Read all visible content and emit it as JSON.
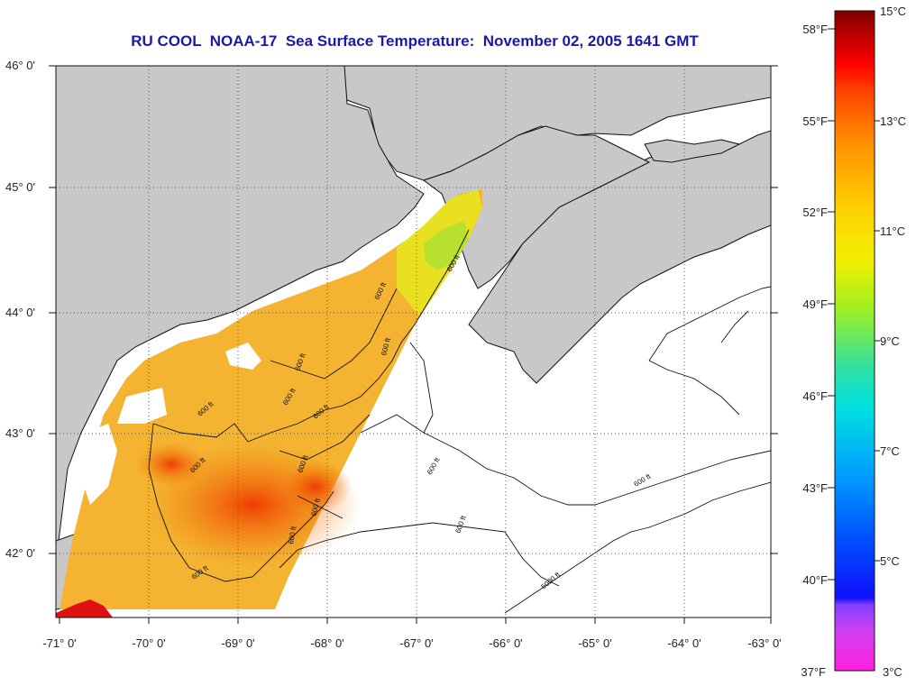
{
  "title": "RU COOL  NOAA-17  Sea Surface Temperature:  November 02, 2005 1641 GMT",
  "map": {
    "lon_ticks": [
      "-71° 0'",
      "-70° 0'",
      "-69° 0'",
      "-68° 0'",
      "-67° 0'",
      "-66° 0'",
      "-65° 0'",
      "-64° 0'",
      "-63° 0'"
    ],
    "lat_ticks": [
      "46° 0'",
      "45° 0'",
      "44° 0'",
      "43° 0'",
      "42° 0'"
    ],
    "contour_labels": [
      "600 ft",
      "600 ft",
      "600 ft",
      "600 ft",
      "600 ft",
      "600 ft",
      "600 ft",
      "600 ft",
      "600 ft",
      "600 ft",
      "600 ft",
      "600 ft",
      "600 ft",
      "600 ft",
      "600 ft",
      "5000 ft"
    ],
    "colors": {
      "land": "#c8c8c8",
      "ocean_nodata": "#ffffff",
      "grid": "#444444"
    }
  },
  "colorbar": {
    "fahrenheit_labels": [
      "58°F",
      "55°F",
      "52°F",
      "49°F",
      "46°F",
      "43°F",
      "40°F",
      "37°F"
    ],
    "celsius_labels": [
      "15°C",
      "13°C",
      "11°C",
      "9°C",
      "7°C",
      "5°C",
      "3°C"
    ],
    "range_c": [
      3,
      15
    ],
    "gradient_stops": [
      "#ff20e0",
      "#c040ff",
      "#3030ff",
      "#0070ff",
      "#00a0ff",
      "#00e0e0",
      "#30e0a0",
      "#80f040",
      "#e8f000",
      "#ffd000",
      "#ffa000",
      "#ff6000",
      "#ff1000",
      "#d00000",
      "#800000"
    ]
  }
}
